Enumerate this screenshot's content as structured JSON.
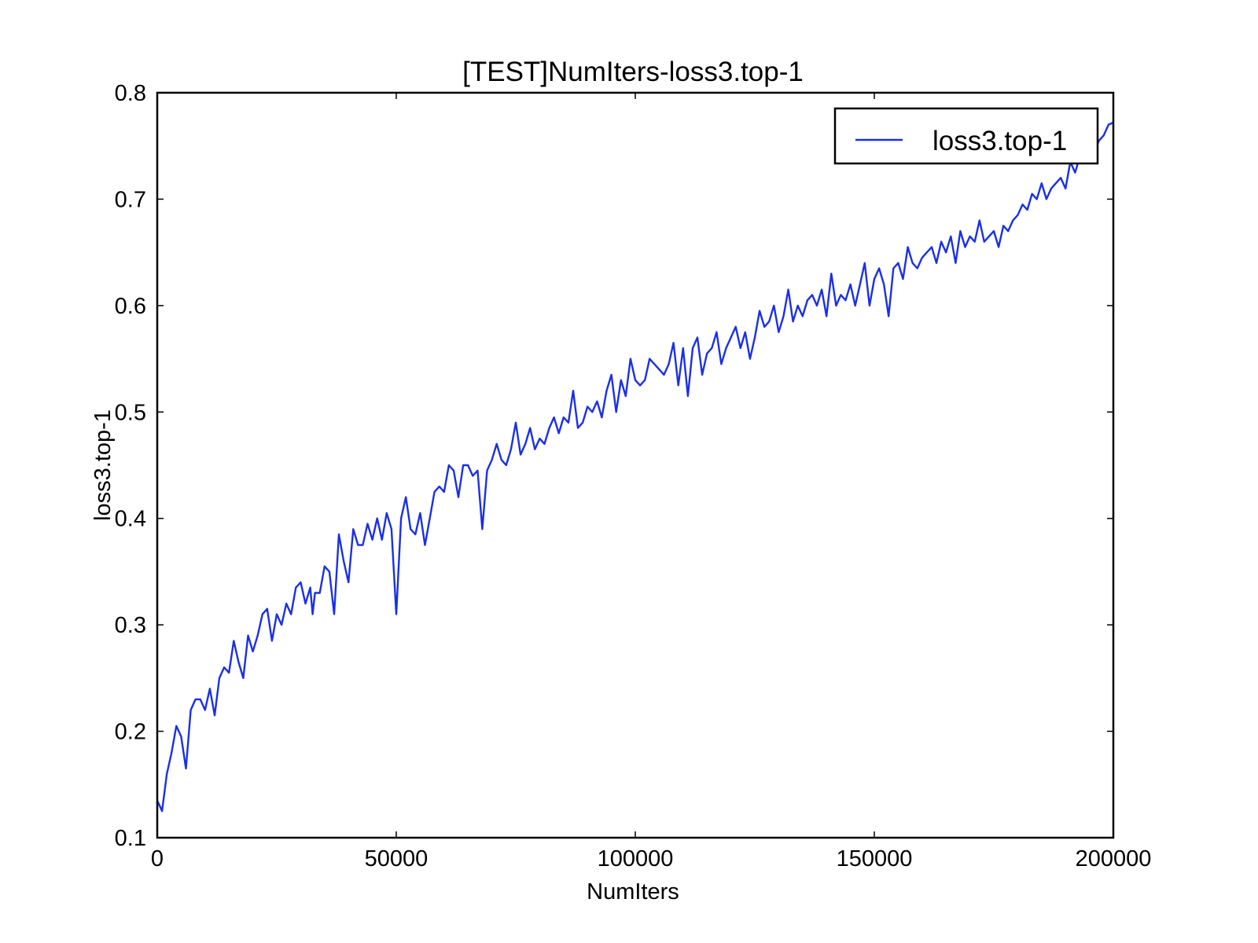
{
  "chart_data": {
    "type": "line",
    "title": "[TEST]NumIters-loss3.top-1",
    "xlabel": "NumIters",
    "ylabel": "loss3.top-1",
    "xlim": [
      0,
      200000
    ],
    "ylim": [
      0.1,
      0.8
    ],
    "xticks": [
      0,
      50000,
      100000,
      150000,
      200000
    ],
    "xtick_labels": [
      "0",
      "50000",
      "100000",
      "150000",
      "200000"
    ],
    "yticks": [
      0.1,
      0.2,
      0.3,
      0.4,
      0.5,
      0.6,
      0.7,
      0.8
    ],
    "ytick_labels": [
      "0.1",
      "0.2",
      "0.3",
      "0.4",
      "0.5",
      "0.6",
      "0.7",
      "0.8"
    ],
    "grid": false,
    "legend": {
      "position": "top-right"
    },
    "series": [
      {
        "name": "loss3.top-1",
        "color": "#1a2fe8",
        "x": [
          0,
          1000,
          2000,
          3000,
          4000,
          5000,
          6000,
          7000,
          8000,
          9000,
          10000,
          11000,
          12000,
          13000,
          14000,
          15000,
          16000,
          17000,
          18000,
          19000,
          20000,
          21000,
          22000,
          23000,
          24000,
          25000,
          26000,
          27000,
          28000,
          29000,
          30000,
          31000,
          32000,
          32500,
          33000,
          34000,
          35000,
          36000,
          37000,
          38000,
          39000,
          40000,
          41000,
          42000,
          43000,
          44000,
          45000,
          46000,
          47000,
          48000,
          49000,
          50000,
          51000,
          52000,
          53000,
          54000,
          55000,
          56000,
          57000,
          58000,
          59000,
          60000,
          61000,
          62000,
          63000,
          64000,
          65000,
          66000,
          67000,
          68000,
          69000,
          70000,
          71000,
          72000,
          73000,
          74000,
          75000,
          76000,
          77000,
          78000,
          79000,
          80000,
          81000,
          82000,
          83000,
          84000,
          85000,
          86000,
          87000,
          88000,
          89000,
          90000,
          91000,
          92000,
          93000,
          94000,
          95000,
          96000,
          97000,
          98000,
          99000,
          100000,
          101000,
          102000,
          103000,
          104000,
          105000,
          106000,
          107000,
          108000,
          109000,
          110000,
          111000,
          112000,
          113000,
          114000,
          115000,
          116000,
          117000,
          118000,
          119000,
          120000,
          121000,
          122000,
          123000,
          124000,
          125000,
          126000,
          127000,
          128000,
          129000,
          130000,
          131000,
          132000,
          133000,
          134000,
          135000,
          136000,
          137000,
          138000,
          139000,
          140000,
          141000,
          142000,
          143000,
          144000,
          145000,
          146000,
          147000,
          148000,
          149000,
          150000,
          151000,
          152000,
          153000,
          154000,
          155000,
          156000,
          157000,
          158000,
          159000,
          160000,
          161000,
          162000,
          163000,
          164000,
          165000,
          166000,
          167000,
          168000,
          169000,
          170000,
          171000,
          172000,
          173000,
          174000,
          175000,
          176000,
          177000,
          178000,
          179000,
          180000,
          181000,
          182000,
          183000,
          184000,
          185000,
          186000,
          187000,
          188000,
          189000,
          190000,
          191000,
          192000,
          193000,
          194000,
          195000,
          196000,
          197000,
          198000,
          199000,
          200000
        ],
        "y": [
          0.135,
          0.125,
          0.16,
          0.18,
          0.205,
          0.195,
          0.165,
          0.22,
          0.23,
          0.23,
          0.22,
          0.24,
          0.215,
          0.25,
          0.26,
          0.255,
          0.285,
          0.265,
          0.25,
          0.29,
          0.275,
          0.29,
          0.31,
          0.315,
          0.285,
          0.31,
          0.3,
          0.32,
          0.31,
          0.335,
          0.34,
          0.32,
          0.335,
          0.31,
          0.33,
          0.33,
          0.355,
          0.35,
          0.31,
          0.385,
          0.36,
          0.34,
          0.39,
          0.375,
          0.375,
          0.395,
          0.38,
          0.4,
          0.38,
          0.405,
          0.39,
          0.31,
          0.4,
          0.42,
          0.39,
          0.385,
          0.405,
          0.375,
          0.4,
          0.425,
          0.43,
          0.425,
          0.45,
          0.445,
          0.42,
          0.45,
          0.45,
          0.44,
          0.445,
          0.39,
          0.445,
          0.455,
          0.47,
          0.455,
          0.45,
          0.465,
          0.49,
          0.46,
          0.47,
          0.485,
          0.465,
          0.475,
          0.47,
          0.485,
          0.495,
          0.48,
          0.495,
          0.49,
          0.52,
          0.485,
          0.49,
          0.505,
          0.5,
          0.51,
          0.495,
          0.52,
          0.535,
          0.5,
          0.53,
          0.515,
          0.55,
          0.53,
          0.525,
          0.53,
          0.55,
          0.545,
          0.54,
          0.535,
          0.545,
          0.565,
          0.525,
          0.56,
          0.515,
          0.56,
          0.57,
          0.535,
          0.555,
          0.56,
          0.575,
          0.545,
          0.56,
          0.57,
          0.58,
          0.56,
          0.575,
          0.55,
          0.57,
          0.595,
          0.58,
          0.585,
          0.6,
          0.575,
          0.59,
          0.615,
          0.585,
          0.6,
          0.59,
          0.605,
          0.61,
          0.6,
          0.615,
          0.59,
          0.63,
          0.6,
          0.61,
          0.605,
          0.62,
          0.6,
          0.62,
          0.64,
          0.6,
          0.625,
          0.635,
          0.62,
          0.59,
          0.635,
          0.64,
          0.625,
          0.655,
          0.64,
          0.635,
          0.645,
          0.65,
          0.655,
          0.64,
          0.66,
          0.65,
          0.665,
          0.64,
          0.67,
          0.655,
          0.665,
          0.66,
          0.68,
          0.66,
          0.665,
          0.67,
          0.655,
          0.675,
          0.67,
          0.68,
          0.685,
          0.695,
          0.69,
          0.705,
          0.7,
          0.715,
          0.7,
          0.71,
          0.715,
          0.72,
          0.71,
          0.735,
          0.725,
          0.74,
          0.735,
          0.74,
          0.745,
          0.755,
          0.76,
          0.77,
          0.772
        ]
      }
    ]
  }
}
